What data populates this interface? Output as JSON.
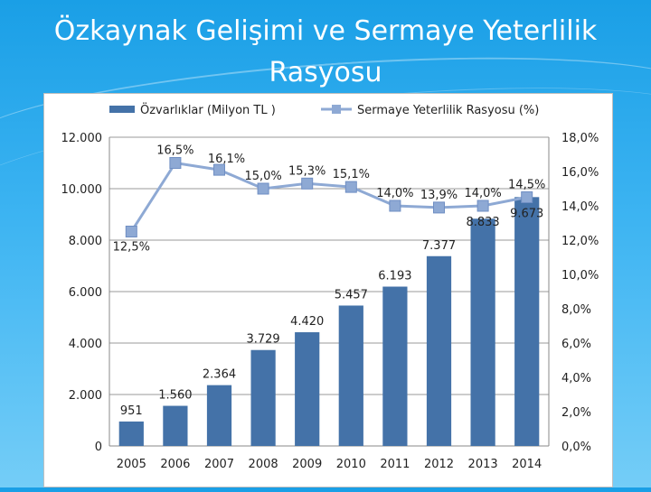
{
  "slide": {
    "title": "Özkaynak Gelişimi ve Sermaye Yeterlilik Rasyosu"
  },
  "chart_data": {
    "type": "bar+line",
    "categories": [
      "2005",
      "2006",
      "2007",
      "2008",
      "2009",
      "2010",
      "2011",
      "2012",
      "2013",
      "2014"
    ],
    "series": [
      {
        "name": "Özvarlıklar (Milyon TL )",
        "type": "bar",
        "axis": "left",
        "color": "#4472a8",
        "values": [
          951,
          1560,
          2364,
          3729,
          4420,
          5457,
          6193,
          7377,
          8833,
          9673
        ],
        "labels": [
          "951",
          "1.560",
          "2.364",
          "3.729",
          "4.420",
          "5.457",
          "6.193",
          "7.377",
          "8.833",
          "9.673"
        ]
      },
      {
        "name": "Sermaye Yeterlilik Rasyosu (%)",
        "type": "line",
        "axis": "right",
        "color": "#8ea9d4",
        "values": [
          12.5,
          16.5,
          16.1,
          15.0,
          15.3,
          15.1,
          14.0,
          13.9,
          14.0,
          14.5
        ],
        "labels": [
          "12,5%",
          "16,5%",
          "16,1%",
          "15,0%",
          "15,3%",
          "15,1%",
          "14,0%",
          "13,9%",
          "14,0%",
          "14,5%"
        ]
      }
    ],
    "y_left": {
      "ylim": [
        0,
        12000
      ],
      "ticks": [
        "0",
        "2.000",
        "4.000",
        "6.000",
        "8.000",
        "10.000",
        "12.000"
      ]
    },
    "y_right": {
      "ylim": [
        0,
        18
      ],
      "ticks": [
        "0,0%",
        "2,0%",
        "4,0%",
        "6,0%",
        "8,0%",
        "10,0%",
        "12,0%",
        "14,0%",
        "16,0%",
        "18,0%"
      ]
    },
    "grid": true,
    "legend_position": "top"
  }
}
